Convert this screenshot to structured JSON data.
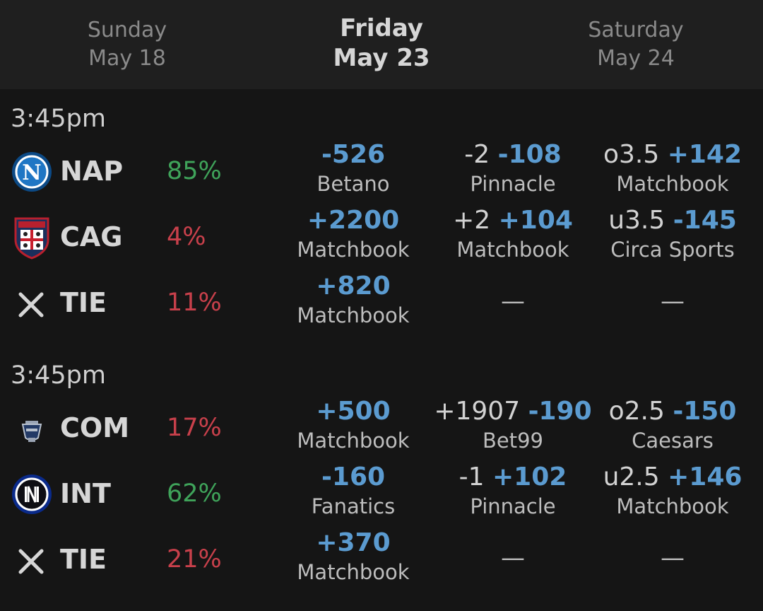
{
  "days": [
    {
      "name": "Sunday",
      "date": "May 18"
    },
    {
      "name": "Friday",
      "date": "May 23"
    },
    {
      "name": "Saturday",
      "date": "May 24"
    }
  ],
  "colors": {
    "background": "#151515",
    "header": "#1f1f1f",
    "odds_blue": "#5b9bd0",
    "pct_green": "#3fa35a",
    "pct_red": "#c8404b"
  },
  "matches": [
    {
      "time": "3:45pm",
      "rows": [
        {
          "team": "NAP",
          "icon": "napoli-logo-icon",
          "pct": "85%",
          "pct_color": "green",
          "moneyline": {
            "odds": "-526",
            "book": "Betano"
          },
          "spread": {
            "line": "-2",
            "odds": "-108",
            "book": "Pinnacle"
          },
          "total": {
            "line": "o3.5",
            "odds": "+142",
            "book": "Matchbook"
          }
        },
        {
          "team": "CAG",
          "icon": "cagliari-logo-icon",
          "pct": "4%",
          "pct_color": "red",
          "moneyline": {
            "odds": "+2200",
            "book": "Matchbook"
          },
          "spread": {
            "line": "+2",
            "odds": "+104",
            "book": "Matchbook"
          },
          "total": {
            "line": "u3.5",
            "odds": "-145",
            "book": "Circa Sports"
          }
        },
        {
          "team": "TIE",
          "icon": "tie-x-icon",
          "pct": "11%",
          "pct_color": "red",
          "moneyline": {
            "odds": "+820",
            "book": "Matchbook"
          },
          "spread_empty": "—",
          "total_empty": "—"
        }
      ]
    },
    {
      "time": "3:45pm",
      "rows": [
        {
          "team": "COM",
          "icon": "como-logo-icon",
          "pct": "17%",
          "pct_color": "red",
          "moneyline": {
            "odds": "+500",
            "book": "Matchbook"
          },
          "spread": {
            "line": "+1907",
            "odds": "-190",
            "book": "Bet99"
          },
          "total": {
            "line": "o2.5",
            "odds": "-150",
            "book": "Caesars"
          }
        },
        {
          "team": "INT",
          "icon": "inter-logo-icon",
          "pct": "62%",
          "pct_color": "green",
          "moneyline": {
            "odds": "-160",
            "book": "Fanatics"
          },
          "spread": {
            "line": "-1",
            "odds": "+102",
            "book": "Pinnacle"
          },
          "total": {
            "line": "u2.5",
            "odds": "+146",
            "book": "Matchbook"
          }
        },
        {
          "team": "TIE",
          "icon": "tie-x-icon",
          "pct": "21%",
          "pct_color": "red",
          "moneyline": {
            "odds": "+370",
            "book": "Matchbook"
          },
          "spread_empty": "—",
          "total_empty": "—"
        }
      ]
    }
  ]
}
